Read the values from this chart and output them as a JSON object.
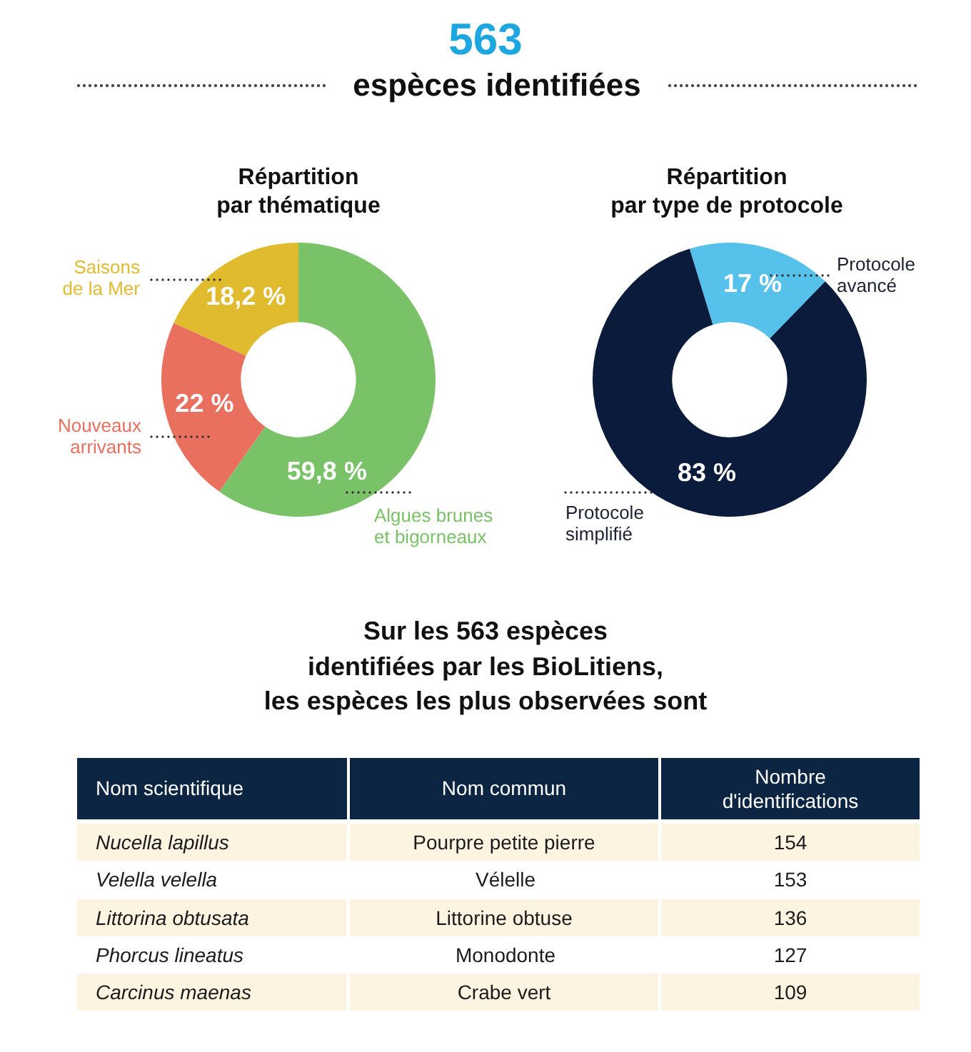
{
  "chart_data": [
    {
      "type": "other",
      "title": "563",
      "subtitle": "espèces identifiées"
    },
    {
      "type": "donut",
      "title": "Répartition\npar thématique",
      "categories": [
        "Algues brunes\net bigorneaux",
        "Nouveaux\narrivants",
        "Saisons\nde la Mer"
      ],
      "values": [
        59.8,
        22,
        18.2
      ],
      "colors": [
        "#79c267",
        "#e96f5f",
        "#e1bb2e"
      ],
      "value_labels": [
        "59,8 %",
        "22 %",
        "18,2 %"
      ]
    },
    {
      "type": "donut",
      "title": "Répartition\npar type de protocole",
      "categories": [
        "Protocole\navancé",
        "Protocole\nsimplifié"
      ],
      "values": [
        17,
        83
      ],
      "colors": [
        "#56c1eb",
        "#0b1b3c"
      ],
      "value_labels": [
        "17 %",
        "83 %"
      ]
    },
    {
      "type": "other",
      "title": "Sur les 563 espèces\nidentifiées par les BioLitiens,\nles espèces les plus observées sont",
      "annotations": [
        "Nom scientifique",
        "Nom commun",
        "Nombre\nd'identifications"
      ],
      "categories": [
        "Nucella lapillus",
        "Velella velella",
        "Littorina obtusata",
        "Phorcus lineatus",
        "Carcinus maenas"
      ],
      "y2_categories": [
        "Pourpre petite pierre",
        "Vélelle",
        "Littorine obtuse",
        "Monodonte",
        "Crabe vert"
      ],
      "values": [
        154,
        153,
        136,
        127,
        109
      ],
      "data_labels": true
    }
  ]
}
